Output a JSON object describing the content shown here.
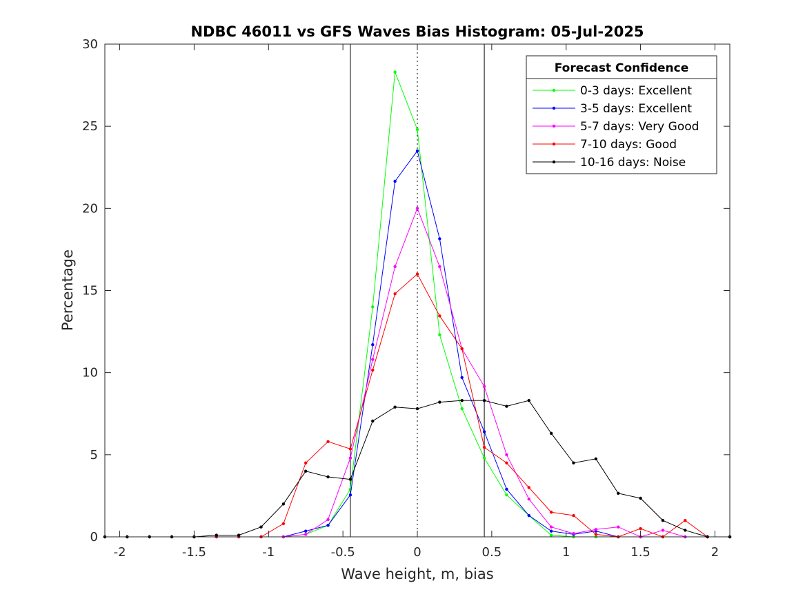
{
  "chart_data": {
    "type": "line",
    "title": "NDBC 46011 vs GFS Waves Bias Histogram: 05-Jul-2025",
    "xlabel": "Wave height, m, bias",
    "ylabel": "Percentage",
    "xlim": [
      -2.1,
      2.1
    ],
    "ylim": [
      0,
      30
    ],
    "xticks": [
      -2,
      -1.5,
      -1,
      -0.5,
      0,
      0.5,
      1,
      1.5,
      2
    ],
    "xtick_labels": [
      "-2",
      "-1.5",
      "-1",
      "-0.5",
      "0",
      "0.5",
      "1",
      "1.5",
      "2"
    ],
    "yticks": [
      0,
      5,
      10,
      15,
      20,
      25,
      30
    ],
    "ytick_labels": [
      "0",
      "5",
      "10",
      "15",
      "20",
      "25",
      "30"
    ],
    "reference_lines": [
      {
        "x": -0.45,
        "style": "solid"
      },
      {
        "x": 0,
        "style": "dotted"
      },
      {
        "x": 0.45,
        "style": "solid"
      }
    ],
    "legend": {
      "title": "Forecast Confidence",
      "position": "top-right"
    },
    "x": [
      -2.1,
      -1.95,
      -1.8,
      -1.65,
      -1.5,
      -1.35,
      -1.2,
      -1.05,
      -0.9,
      -0.75,
      -0.6,
      -0.45,
      -0.3,
      -0.15,
      0,
      0.15,
      0.3,
      0.45,
      0.6,
      0.75,
      0.9,
      1.05,
      1.2,
      1.35,
      1.5,
      1.65,
      1.8,
      1.95,
      2.1
    ],
    "series": [
      {
        "name": "0-3 days: Excellent",
        "color": "#00ff00",
        "values": [
          0,
          0,
          0,
          0,
          0,
          0,
          0,
          0,
          0,
          0.15,
          0.7,
          2.9,
          14.0,
          28.3,
          24.8,
          12.3,
          7.8,
          4.8,
          2.55,
          1.3,
          0.1,
          0.0,
          0.0,
          0.0,
          0,
          0,
          0,
          0,
          0
        ]
      },
      {
        "name": "3-5 days: Excellent",
        "color": "#0000ff",
        "values": [
          0,
          0,
          0,
          0,
          0,
          0,
          0,
          0,
          0,
          0.35,
          0.7,
          2.55,
          11.7,
          21.65,
          23.5,
          18.15,
          9.7,
          6.4,
          2.9,
          1.3,
          0.35,
          0.15,
          0.35,
          0.0,
          0,
          0,
          0,
          0,
          0
        ]
      },
      {
        "name": "5-7 days: Very Good",
        "color": "#ff00ff",
        "values": [
          0,
          0,
          0,
          0,
          0,
          0,
          0,
          0,
          0,
          0.15,
          1.05,
          4.8,
          10.8,
          16.45,
          20.0,
          16.45,
          11.45,
          9.15,
          5.0,
          2.3,
          0.6,
          0.2,
          0.45,
          0.6,
          0.0,
          0.4,
          0.0,
          0,
          0
        ]
      },
      {
        "name": "7-10 days: Good",
        "color": "#ff0000",
        "values": [
          0,
          0,
          0,
          0,
          0,
          0,
          0,
          0,
          0.8,
          4.5,
          5.8,
          5.35,
          10.15,
          14.8,
          16.0,
          13.45,
          11.45,
          5.45,
          4.5,
          3.0,
          1.5,
          1.3,
          0.15,
          0.0,
          0.5,
          0.0,
          1.0,
          0,
          0
        ]
      },
      {
        "name": "10-16 days: Noise",
        "color": "#000000",
        "values": [
          0,
          0,
          0,
          0,
          0,
          0.1,
          0.1,
          0.6,
          2.0,
          4.0,
          3.65,
          3.5,
          7.05,
          7.9,
          7.8,
          8.2,
          8.3,
          8.3,
          7.95,
          8.3,
          6.3,
          4.5,
          4.75,
          2.65,
          2.35,
          1.0,
          0.4,
          0.0,
          0
        ]
      }
    ]
  }
}
